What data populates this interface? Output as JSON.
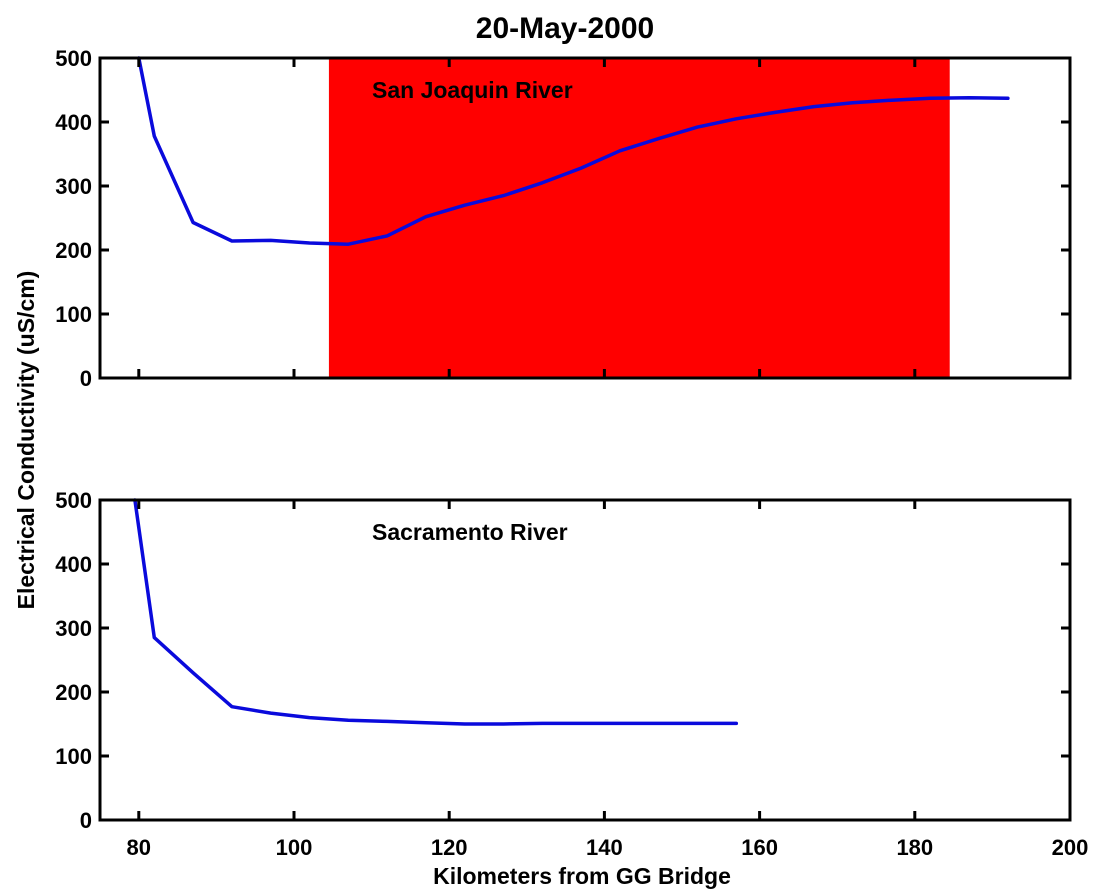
{
  "figure": {
    "title": "20-May-2000",
    "xlabel": "Kilometers from GG Bridge",
    "ylabel": "Electrical Conductivity (uS/cm)"
  },
  "colors": {
    "line": "#0a0adc",
    "region": "#ff0000",
    "axes": "#000000",
    "background": "#ffffff"
  },
  "chart_data": [
    {
      "type": "line",
      "annotation": "San Joaquin River",
      "xlim": [
        75,
        200
      ],
      "ylim": [
        0,
        500
      ],
      "x_ticks": [
        80,
        100,
        120,
        140,
        160,
        180,
        200
      ],
      "x_tick_labels_shown": false,
      "y_ticks": [
        0,
        100,
        200,
        300,
        400,
        500
      ],
      "grid": false,
      "shaded_region": {
        "x_start": 104.5,
        "x_end": 184.5
      },
      "series": [
        {
          "x": [
            80,
            82,
            87,
            92,
            97,
            102,
            107,
            112,
            117,
            122,
            127,
            132,
            137,
            142,
            147,
            152,
            157,
            162,
            167,
            172,
            177,
            182,
            187,
            192
          ],
          "values": [
            500,
            378,
            243,
            214,
            215,
            211,
            209,
            222,
            252,
            270,
            285,
            305,
            328,
            355,
            374,
            392,
            405,
            415,
            424,
            430,
            434,
            437,
            438,
            437
          ]
        }
      ]
    },
    {
      "type": "line",
      "annotation": "Sacramento River",
      "xlim": [
        75,
        200
      ],
      "ylim": [
        0,
        500
      ],
      "x_ticks": [
        80,
        100,
        120,
        140,
        160,
        180,
        200
      ],
      "x_tick_labels_shown": true,
      "y_ticks": [
        0,
        100,
        200,
        300,
        400,
        500
      ],
      "grid": false,
      "series": [
        {
          "x": [
            79.5,
            82,
            87,
            92,
            97,
            102,
            107,
            112,
            117,
            122,
            127,
            132,
            137,
            142,
            147,
            152,
            157
          ],
          "values": [
            500,
            285,
            230,
            177,
            167,
            160,
            156,
            154,
            152,
            150,
            150,
            151,
            151,
            151,
            151,
            151,
            151
          ]
        }
      ]
    }
  ]
}
